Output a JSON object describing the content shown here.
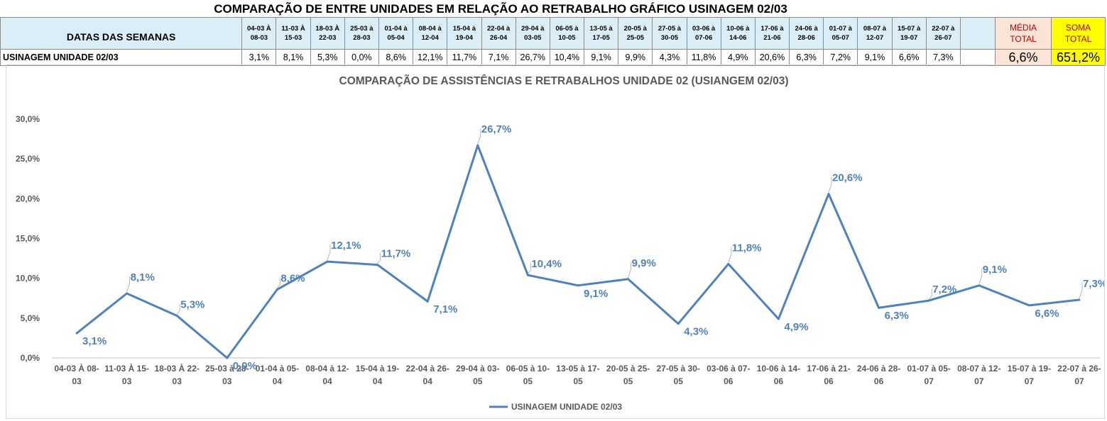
{
  "header": {
    "title": "COMPARAÇÃO DE ENTRE UNIDADES EM RELAÇÃO AO RETRABALHO GRÁFICO USINAGEM 02/03",
    "row_label_dates": "DATAS DAS SEMANAS",
    "row_label_unit": "USINAGEM UNIDADE 02/03",
    "media_label_1": "MÉDIA",
    "media_label_2": "TOTAL",
    "soma_label_1": "SOMA",
    "soma_label_2": "TOTAL",
    "media_value": "6,6%",
    "soma_value": "651,2%",
    "columns": [
      {
        "top": "04-03 À",
        "bottom": "08-03",
        "value": "3,1%"
      },
      {
        "top": "11-03 À",
        "bottom": "15-03",
        "value": "8,1%"
      },
      {
        "top": "18-03 À",
        "bottom": "22-03",
        "value": "5,3%"
      },
      {
        "top": "25-03 à",
        "bottom": "28-03",
        "value": "0,0%"
      },
      {
        "top": "01-04 à",
        "bottom": "05-04",
        "value": "8,6%"
      },
      {
        "top": "08-04 à",
        "bottom": "12-04",
        "value": "12,1%"
      },
      {
        "top": "15-04 à",
        "bottom": "19-04",
        "value": "11,7%"
      },
      {
        "top": "22-04 à",
        "bottom": "26-04",
        "value": "7,1%"
      },
      {
        "top": "29-04 à",
        "bottom": "03-05",
        "value": "26,7%"
      },
      {
        "top": "06-05 à",
        "bottom": "10-05",
        "value": "10,4%"
      },
      {
        "top": "13-05 à",
        "bottom": "17-05",
        "value": "9,1%"
      },
      {
        "top": "20-05 à",
        "bottom": "25-05",
        "value": "9,9%"
      },
      {
        "top": "27-05 à",
        "bottom": "30-05",
        "value": "4,3%"
      },
      {
        "top": "03-06 à",
        "bottom": "07-06",
        "value": "11,8%"
      },
      {
        "top": "10-06 à",
        "bottom": "14-06",
        "value": "4,9%"
      },
      {
        "top": "17-06 à",
        "bottom": "21-06",
        "value": "20,6%"
      },
      {
        "top": "24-06 à",
        "bottom": "28-06",
        "value": "6,3%"
      },
      {
        "top": "01-07 à",
        "bottom": "05-07",
        "value": "7,2%"
      },
      {
        "top": "08-07 à",
        "bottom": "12-07",
        "value": "9,1%"
      },
      {
        "top": "15-07 à",
        "bottom": "19-07",
        "value": "6,6%"
      },
      {
        "top": "22-07 à",
        "bottom": "26-07",
        "value": "7,3%"
      }
    ]
  },
  "colors": {
    "line": "#4f81bd",
    "header_bg": "#dbeef7",
    "media_bg": "#fbe4d5",
    "soma_bg": "#ffff00",
    "highlight_text": "#c00000"
  },
  "chart_data": {
    "type": "line",
    "title": "COMPARAÇÃO DE ASSISTÊNCIAS E RETRABALHOS UNIDADE 02  (USIANGEM 02/03)",
    "categories": [
      [
        "04-03 À 08-",
        "03"
      ],
      [
        "11-03 À 15-",
        "03"
      ],
      [
        "18-03 À 22-",
        "03"
      ],
      [
        "25-03 à 28-",
        "03"
      ],
      [
        "01-04 à 05-",
        "04"
      ],
      [
        "08-04 à 12-",
        "04"
      ],
      [
        "15-04 à 19-",
        "04"
      ],
      [
        "22-04 à 26-",
        "04"
      ],
      [
        "29-04 à 03-",
        "05"
      ],
      [
        "06-05 à 10-",
        "05"
      ],
      [
        "13-05 à 17-",
        "05"
      ],
      [
        "20-05 à 25-",
        "05"
      ],
      [
        "27-05 à 30-",
        "05"
      ],
      [
        "03-06 à 07-",
        "06"
      ],
      [
        "10-06 à 14-",
        "06"
      ],
      [
        "17-06 à 21-",
        "06"
      ],
      [
        "24-06 à 28-",
        "06"
      ],
      [
        "01-07 à 05-",
        "07"
      ],
      [
        "08-07 à 12-",
        "07"
      ],
      [
        "15-07 à 19-",
        "07"
      ],
      [
        "22-07 à 26-",
        "07"
      ]
    ],
    "series": [
      {
        "name": "USINAGEM UNIDADE 02/03",
        "values": [
          3.1,
          8.1,
          5.3,
          0.0,
          8.6,
          12.1,
          11.7,
          7.1,
          26.7,
          10.4,
          9.1,
          9.9,
          4.3,
          11.8,
          4.9,
          20.6,
          6.3,
          7.2,
          9.1,
          6.6,
          7.3
        ],
        "labels": [
          "3,1%",
          "8,1%",
          "5,3%",
          "0,0%",
          "8,6%",
          "12,1%",
          "11,7%",
          "7,1%",
          "26,7%",
          "10,4%",
          "9,1%",
          "9,9%",
          "4,3%",
          "11,8%",
          "4,9%",
          "20,6%",
          "6,3%",
          "7,2%",
          "9,1%",
          "6,6%",
          "7,3%"
        ]
      }
    ],
    "yticks": [
      "0,0%",
      "5,0%",
      "10,0%",
      "15,0%",
      "20,0%",
      "25,0%",
      "30,0%"
    ],
    "ylim": [
      0,
      30
    ],
    "xlabel": "",
    "ylabel": "",
    "grid": false,
    "legend": "bottom"
  }
}
